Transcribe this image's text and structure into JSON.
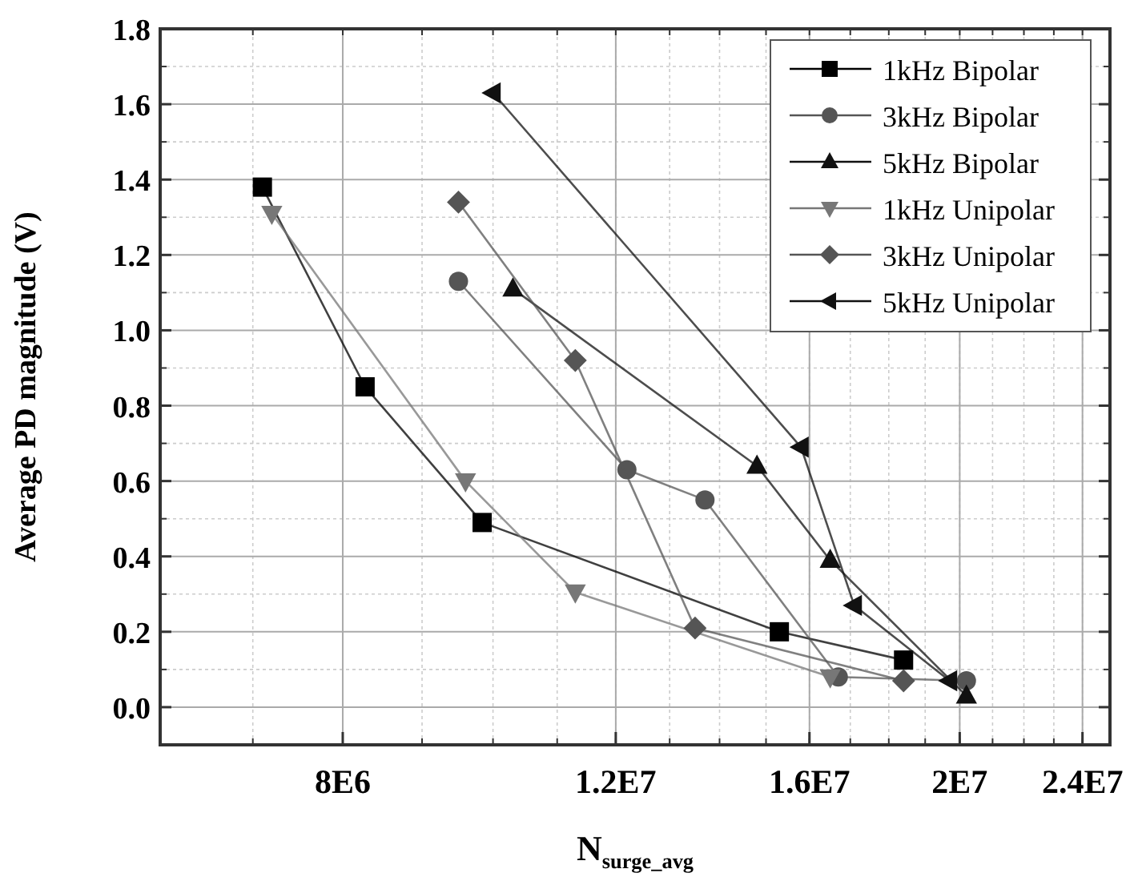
{
  "chart_data": {
    "type": "line",
    "xlabel": "N$_{surge_avg}$",
    "ylabel": "Average  PD magnitude (V)",
    "log": "x",
    "grid": true,
    "legend": "top right",
    "xlim": [
      6100000,
      25000000
    ],
    "xticks": [
      {
        "value": 8000000,
        "label": "8E6"
      },
      {
        "value": 12000000,
        "label": "1.2E7"
      },
      {
        "value": 16000000,
        "label": "1.6E7"
      },
      {
        "value": 20000000,
        "label": "2E7"
      },
      {
        "value": 24000000,
        "label": "2.4E7"
      }
    ],
    "ylim": [
      -0.1,
      1.8
    ],
    "yticks": [
      {
        "value": 0,
        "label": "0.0"
      },
      {
        "value": 0.2,
        "label": "0.2"
      },
      {
        "value": 0.4,
        "label": "0.4"
      },
      {
        "value": 0.6,
        "label": "0.6"
      },
      {
        "value": 0.8,
        "label": "0.8"
      },
      {
        "value": 1,
        "label": "1.0"
      },
      {
        "value": 1.2,
        "label": "1.2"
      },
      {
        "value": 1.4,
        "label": "1.4"
      },
      {
        "value": 1.6,
        "label": "1.6"
      },
      {
        "value": 1.8,
        "label": "1.8"
      }
    ],
    "series": [
      {
        "name": "1kHz Bipolar",
        "color": "#000000",
        "marker": "square",
        "x": [
          7100000,
          8270000,
          9840000,
          15300000,
          18400000
        ],
        "values": [
          1.38,
          0.85,
          0.49,
          0.2,
          0.125
        ]
      },
      {
        "name": "3kHz Bipolar",
        "color": "#555555",
        "marker": "circle",
        "x": [
          9500000,
          12200000,
          13700000,
          16700000,
          20200000
        ],
        "values": [
          1.13,
          0.63,
          0.55,
          0.08,
          0.07
        ]
      },
      {
        "name": "5kHz Bipolar",
        "color": "#111111",
        "marker": "triangle",
        "x": [
          10300000,
          14800000,
          16500000,
          20200000
        ],
        "values": [
          1.11,
          0.64,
          0.39,
          0.03
        ]
      },
      {
        "name": "1kHz Unipolar",
        "color": "#777777",
        "marker": "triangle-down",
        "x": [
          7200000,
          9600000,
          11300000,
          16500000
        ],
        "values": [
          1.31,
          0.6,
          0.305,
          0.08
        ]
      },
      {
        "name": "3kHz Unipolar",
        "color": "#555555",
        "marker": "diamond",
        "x": [
          9500000,
          11300000,
          13500000,
          18400000
        ],
        "values": [
          1.34,
          0.92,
          0.21,
          0.07
        ]
      },
      {
        "name": "5kHz Unipolar",
        "color": "#111111",
        "marker": "triangle-left",
        "x": [
          10000000,
          15800000,
          17100000,
          19700000
        ],
        "values": [
          1.63,
          0.69,
          0.27,
          0.07
        ]
      }
    ]
  }
}
